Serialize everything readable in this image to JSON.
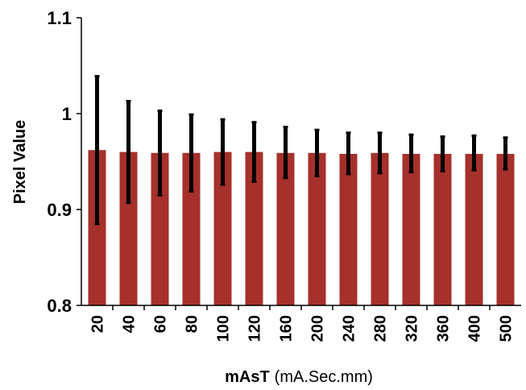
{
  "chart_data": {
    "type": "bar",
    "title": "",
    "xlabel": "mAsT",
    "xlabel_unit": "(mA.Sec.mm)",
    "ylabel": "Pixel Value",
    "ylim": [
      0.8,
      1.1
    ],
    "yticks": [
      "0.8",
      "0.9",
      "1",
      "1.1"
    ],
    "grid": false,
    "legend": "none",
    "categories": [
      "20",
      "40",
      "60",
      "80",
      "100",
      "120",
      "160",
      "200",
      "240",
      "280",
      "320",
      "360",
      "400",
      "500"
    ],
    "series": [
      {
        "values": [
          0.962,
          0.96,
          0.959,
          0.959,
          0.96,
          0.96,
          0.959,
          0.959,
          0.958,
          0.959,
          0.958,
          0.958,
          0.958,
          0.958
        ],
        "error_low": [
          0.885,
          0.907,
          0.915,
          0.919,
          0.926,
          0.929,
          0.933,
          0.935,
          0.937,
          0.938,
          0.939,
          0.94,
          0.941,
          0.942
        ],
        "error_high": [
          1.039,
          1.013,
          1.003,
          0.999,
          0.994,
          0.991,
          0.986,
          0.983,
          0.98,
          0.98,
          0.978,
          0.976,
          0.977,
          0.975
        ]
      }
    ],
    "colors": {
      "bar": "#a6302b",
      "error": "#000000",
      "axis": "#000000"
    }
  }
}
